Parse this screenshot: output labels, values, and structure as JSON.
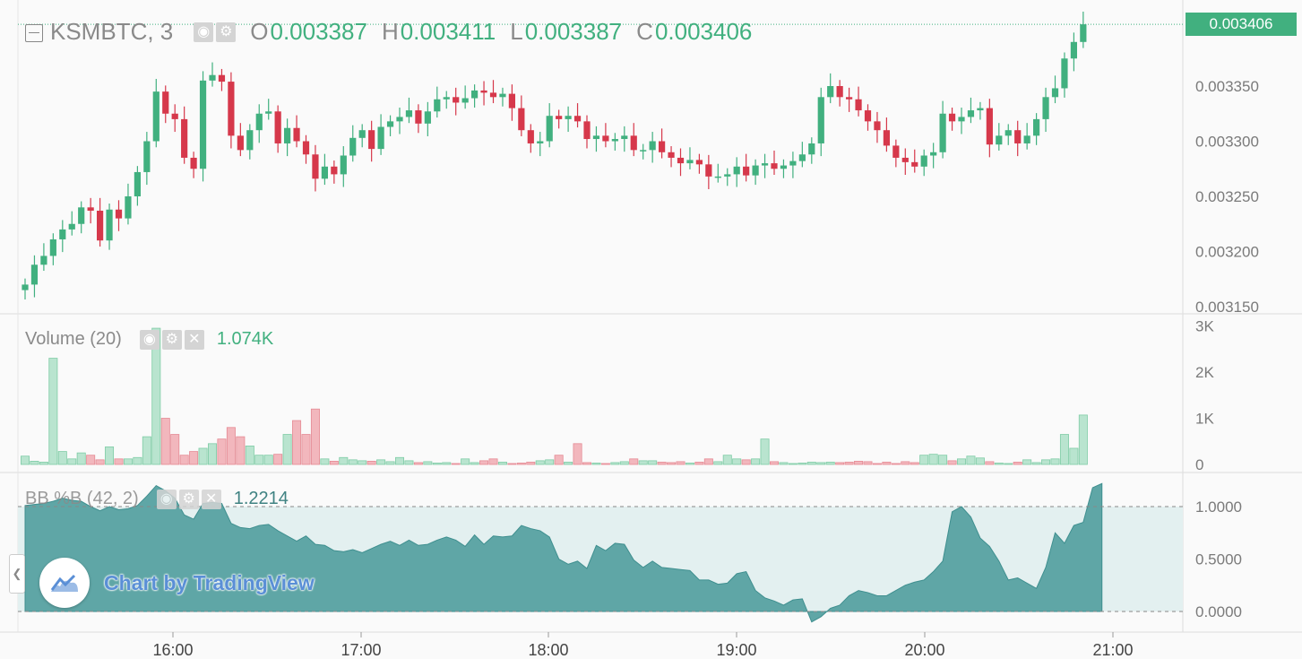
{
  "header": {
    "symbol": "KSMBTC, 3",
    "open_label": "O",
    "open": "0.003387",
    "high_label": "H",
    "high": "0.003411",
    "low_label": "L",
    "low": "0.003387",
    "close_label": "C",
    "close": "0.003406"
  },
  "price_badge": "0.003406",
  "volume_pane": {
    "title": "Volume (20)",
    "value": "1.074K"
  },
  "bb_pane": {
    "title": "BB %B (42, 2)",
    "value": "1.2214"
  },
  "watermark": "Chart by TradingView",
  "colors": {
    "up": "#41b07f",
    "down": "#d6384b",
    "bb_fill": "#5fa6a6",
    "bb_band": "#e3f0f0",
    "axis_text": "#7a7a7a"
  },
  "chart_data": [
    {
      "type": "candlestick",
      "title": "KSMBTC, 3",
      "x_axis_ticks": [
        "16:00",
        "17:00",
        "18:00",
        "19:00",
        "20:00",
        "21:00"
      ],
      "y_axis_ticks": [
        "0.003150",
        "0.003200",
        "0.003250",
        "0.003300",
        "0.003350"
      ],
      "ylim": [
        0.003144,
        0.003424
      ],
      "last_price": 0.003406,
      "close": [
        0.00317,
        0.003188,
        0.003196,
        0.003211,
        0.00322,
        0.003225,
        0.00324,
        0.003237,
        0.00321,
        0.003238,
        0.00323,
        0.00325,
        0.003272,
        0.0033,
        0.003345,
        0.003325,
        0.00332,
        0.003285,
        0.003275,
        0.003355,
        0.00336,
        0.003354,
        0.003305,
        0.003292,
        0.00331,
        0.003325,
        0.003327,
        0.003298,
        0.003312,
        0.0033,
        0.003288,
        0.003266,
        0.003277,
        0.00327,
        0.003287,
        0.003303,
        0.00331,
        0.003293,
        0.003313,
        0.003318,
        0.003322,
        0.003328,
        0.003316,
        0.003327,
        0.003338,
        0.00334,
        0.003335,
        0.003339,
        0.003346,
        0.003344,
        0.00334,
        0.003343,
        0.00333,
        0.00331,
        0.003298,
        0.0033,
        0.003323,
        0.00332,
        0.003323,
        0.003318,
        0.003302,
        0.003305,
        0.0033,
        0.003302,
        0.003305,
        0.003292,
        0.003292,
        0.0033,
        0.00329,
        0.003285,
        0.00328,
        0.003283,
        0.003279,
        0.003268,
        0.003268,
        0.00327,
        0.003277,
        0.003269,
        0.003278,
        0.00328,
        0.003275,
        0.003278,
        0.003282,
        0.003288,
        0.003298,
        0.00334,
        0.00335,
        0.00334,
        0.003338,
        0.003328,
        0.003318,
        0.00331,
        0.003296,
        0.003285,
        0.003281,
        0.003277,
        0.003287,
        0.00329,
        0.003325,
        0.003318,
        0.003322,
        0.003328,
        0.00333,
        0.003297,
        0.003305,
        0.00331,
        0.003298,
        0.003305,
        0.00332,
        0.00334,
        0.003348,
        0.003375,
        0.00339,
        0.003406
      ]
    },
    {
      "type": "bar",
      "title": "Volume (20)",
      "y_axis_ticks": [
        "0",
        "1K",
        "2K",
        "3K"
      ],
      "ylim": [
        0,
        3000
      ],
      "last_value": 1.074,
      "values": [
        0.18,
        0.07,
        0.05,
        2.3,
        0.28,
        0.12,
        0.25,
        0.2,
        0.1,
        0.38,
        0.12,
        0.12,
        0.15,
        0.6,
        2.95,
        1.0,
        0.65,
        0.2,
        0.28,
        0.35,
        0.45,
        0.55,
        0.8,
        0.6,
        0.4,
        0.2,
        0.2,
        0.22,
        0.65,
        0.95,
        0.65,
        1.2,
        0.12,
        0.07,
        0.15,
        0.1,
        0.08,
        0.07,
        0.1,
        0.06,
        0.15,
        0.08,
        0.04,
        0.06,
        0.03,
        0.04,
        0.02,
        0.12,
        0.04,
        0.08,
        0.12,
        0.05,
        0.02,
        0.03,
        0.05,
        0.08,
        0.1,
        0.2,
        0.05,
        0.45,
        0.04,
        0.03,
        0.02,
        0.04,
        0.06,
        0.12,
        0.08,
        0.08,
        0.05,
        0.04,
        0.06,
        0.03,
        0.05,
        0.12,
        0.06,
        0.2,
        0.12,
        0.1,
        0.12,
        0.55,
        0.06,
        0.04,
        0.02,
        0.03,
        0.05,
        0.04,
        0.05,
        0.04,
        0.05,
        0.07,
        0.06,
        0.02,
        0.05,
        0.02,
        0.06,
        0.04,
        0.2,
        0.22,
        0.2,
        0.08,
        0.12,
        0.18,
        0.14,
        0.06,
        0.03,
        0.02,
        0.05,
        0.1,
        0.04,
        0.1,
        0.12,
        0.65,
        0.35,
        1.07
      ]
    },
    {
      "type": "area",
      "title": "BB %B (42, 2)",
      "y_axis_ticks": [
        "0.0000",
        "0.5000",
        "1.0000"
      ],
      "ylim": [
        -0.15,
        1.3
      ],
      "band": [
        0,
        1
      ],
      "last_value": 1.2214,
      "values": [
        1.01,
        1.02,
        1.03,
        1.05,
        1.08,
        1.06,
        1.05,
        1.0,
        0.96,
        1.0,
        0.97,
        0.98,
        1.01,
        1.1,
        1.2,
        1.15,
        1.08,
        0.92,
        0.88,
        1.03,
        1.04,
        1.03,
        0.84,
        0.8,
        0.79,
        0.82,
        0.83,
        0.77,
        0.72,
        0.67,
        0.72,
        0.64,
        0.63,
        0.58,
        0.57,
        0.59,
        0.56,
        0.6,
        0.64,
        0.67,
        0.63,
        0.68,
        0.63,
        0.64,
        0.68,
        0.71,
        0.68,
        0.62,
        0.73,
        0.64,
        0.72,
        0.71,
        0.72,
        0.82,
        0.79,
        0.77,
        0.71,
        0.5,
        0.45,
        0.48,
        0.41,
        0.63,
        0.58,
        0.65,
        0.64,
        0.49,
        0.42,
        0.48,
        0.42,
        0.41,
        0.4,
        0.39,
        0.3,
        0.3,
        0.26,
        0.27,
        0.36,
        0.38,
        0.2,
        0.13,
        0.1,
        0.06,
        0.11,
        0.12,
        -0.1,
        -0.05,
        0.03,
        0.06,
        0.15,
        0.2,
        0.18,
        0.15,
        0.15,
        0.2,
        0.25,
        0.28,
        0.3,
        0.38,
        0.48,
        0.95,
        1.0,
        0.9,
        0.7,
        0.62,
        0.48,
        0.3,
        0.32,
        0.27,
        0.22,
        0.42,
        0.75,
        0.65,
        0.82,
        0.85,
        1.18,
        1.22
      ]
    }
  ]
}
